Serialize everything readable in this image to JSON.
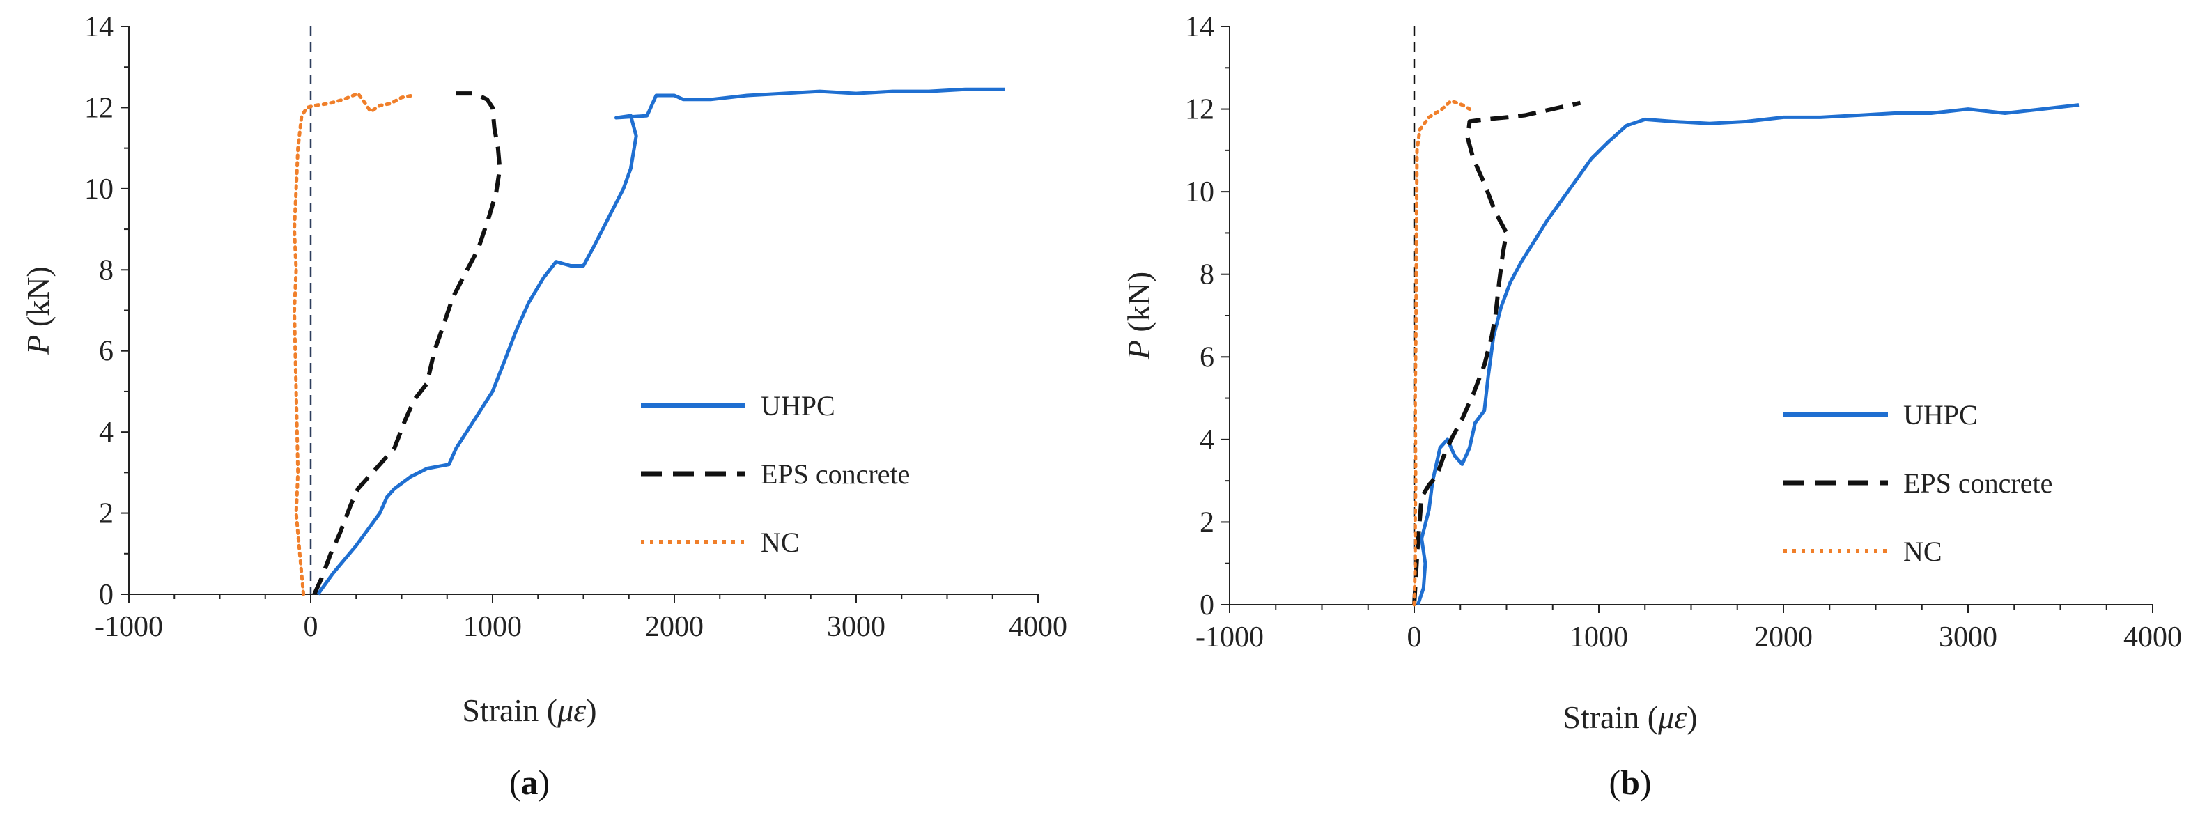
{
  "chart_data": [
    {
      "type": "line",
      "panel_label": "(a)",
      "xlabel": "Strain (με)",
      "ylabel": "P (kN)",
      "xlim": [
        -1000,
        4000
      ],
      "ylim": [
        0,
        14
      ],
      "x_ticks": [
        -1000,
        0,
        1000,
        2000,
        3000,
        4000
      ],
      "y_ticks": [
        0,
        2,
        4,
        6,
        8,
        10,
        12,
        14
      ],
      "reference_line_x": 0,
      "legend_position": "right",
      "series": [
        {
          "name": "UHPC",
          "color": "#1f6fd1",
          "dash": "solid",
          "points": [
            [
              40,
              0
            ],
            [
              120,
              0.5
            ],
            [
              250,
              1.2
            ],
            [
              380,
              2.0
            ],
            [
              420,
              2.4
            ],
            [
              460,
              2.6
            ],
            [
              550,
              2.9
            ],
            [
              640,
              3.1
            ],
            [
              760,
              3.2
            ],
            [
              800,
              3.6
            ],
            [
              900,
              4.3
            ],
            [
              1000,
              5.0
            ],
            [
              1070,
              5.8
            ],
            [
              1130,
              6.5
            ],
            [
              1200,
              7.2
            ],
            [
              1280,
              7.8
            ],
            [
              1350,
              8.2
            ],
            [
              1430,
              8.1
            ],
            [
              1500,
              8.1
            ],
            [
              1560,
              8.6
            ],
            [
              1640,
              9.3
            ],
            [
              1720,
              10.0
            ],
            [
              1760,
              10.5
            ],
            [
              1790,
              11.3
            ],
            [
              1760,
              11.8
            ],
            [
              1680,
              11.75
            ],
            [
              1850,
              11.8
            ],
            [
              1900,
              12.3
            ],
            [
              2000,
              12.3
            ],
            [
              2050,
              12.2
            ],
            [
              2200,
              12.2
            ],
            [
              2400,
              12.3
            ],
            [
              2600,
              12.35
            ],
            [
              2800,
              12.4
            ],
            [
              3000,
              12.35
            ],
            [
              3200,
              12.4
            ],
            [
              3400,
              12.4
            ],
            [
              3600,
              12.45
            ],
            [
              3820,
              12.45
            ]
          ]
        },
        {
          "name": "EPS concrete",
          "color": "#111111",
          "dash": "dashed",
          "points": [
            [
              20,
              0
            ],
            [
              60,
              0.4
            ],
            [
              110,
              1.0
            ],
            [
              160,
              1.5
            ],
            [
              220,
              2.2
            ],
            [
              260,
              2.6
            ],
            [
              320,
              2.9
            ],
            [
              400,
              3.3
            ],
            [
              460,
              3.6
            ],
            [
              520,
              4.3
            ],
            [
              570,
              4.8
            ],
            [
              640,
              5.2
            ],
            [
              680,
              6.0
            ],
            [
              720,
              6.5
            ],
            [
              780,
              7.3
            ],
            [
              860,
              8.0
            ],
            [
              920,
              8.5
            ],
            [
              980,
              9.3
            ],
            [
              1020,
              9.9
            ],
            [
              1040,
              10.5
            ],
            [
              1030,
              11.0
            ],
            [
              1010,
              11.5
            ],
            [
              1000,
              12.0
            ],
            [
              970,
              12.2
            ],
            [
              900,
              12.35
            ],
            [
              800,
              12.35
            ]
          ]
        },
        {
          "name": "NC",
          "color": "#f07f2a",
          "dash": "dotted",
          "points": [
            [
              -40,
              0
            ],
            [
              -60,
              1
            ],
            [
              -80,
              2
            ],
            [
              -70,
              3
            ],
            [
              -80,
              5
            ],
            [
              -90,
              7
            ],
            [
              -80,
              8
            ],
            [
              -90,
              9
            ],
            [
              -80,
              10
            ],
            [
              -70,
              11
            ],
            [
              -50,
              11.8
            ],
            [
              -20,
              12.0
            ],
            [
              20,
              12.05
            ],
            [
              100,
              12.1
            ],
            [
              180,
              12.2
            ],
            [
              260,
              12.35
            ],
            [
              300,
              12.1
            ],
            [
              330,
              11.9
            ],
            [
              380,
              12.05
            ],
            [
              440,
              12.1
            ],
            [
              500,
              12.25
            ],
            [
              560,
              12.3
            ]
          ]
        }
      ]
    },
    {
      "type": "line",
      "panel_label": "(b)",
      "xlabel": "Strain (με)",
      "ylabel": "P (kN)",
      "xlim": [
        -1000,
        4000
      ],
      "ylim": [
        0,
        14
      ],
      "x_ticks": [
        -1000,
        0,
        1000,
        2000,
        3000,
        4000
      ],
      "y_ticks": [
        0,
        2,
        4,
        6,
        8,
        10,
        12,
        14
      ],
      "reference_line_x": 0,
      "legend_position": "right",
      "series": [
        {
          "name": "UHPC",
          "color": "#1f6fd1",
          "dash": "solid",
          "points": [
            [
              20,
              0
            ],
            [
              50,
              0.4
            ],
            [
              60,
              1.0
            ],
            [
              40,
              1.6
            ],
            [
              80,
              2.3
            ],
            [
              100,
              3.0
            ],
            [
              140,
              3.8
            ],
            [
              180,
              4.0
            ],
            [
              220,
              3.6
            ],
            [
              260,
              3.4
            ],
            [
              300,
              3.8
            ],
            [
              330,
              4.4
            ],
            [
              380,
              4.7
            ],
            [
              400,
              5.5
            ],
            [
              430,
              6.5
            ],
            [
              470,
              7.2
            ],
            [
              520,
              7.8
            ],
            [
              580,
              8.3
            ],
            [
              650,
              8.8
            ],
            [
              720,
              9.3
            ],
            [
              800,
              9.8
            ],
            [
              880,
              10.3
            ],
            [
              960,
              10.8
            ],
            [
              1050,
              11.2
            ],
            [
              1150,
              11.6
            ],
            [
              1250,
              11.75
            ],
            [
              1400,
              11.7
            ],
            [
              1600,
              11.65
            ],
            [
              1800,
              11.7
            ],
            [
              2000,
              11.8
            ],
            [
              2200,
              11.8
            ],
            [
              2400,
              11.85
            ],
            [
              2600,
              11.9
            ],
            [
              2800,
              11.9
            ],
            [
              3000,
              12.0
            ],
            [
              3200,
              11.9
            ],
            [
              3400,
              12.0
            ],
            [
              3600,
              12.1
            ]
          ]
        },
        {
          "name": "EPS concrete",
          "color": "#111111",
          "dash": "dashed",
          "points": [
            [
              0,
              0
            ],
            [
              20,
              1.5
            ],
            [
              40,
              2.6
            ],
            [
              80,
              2.9
            ],
            [
              120,
              3.1
            ],
            [
              160,
              3.6
            ],
            [
              200,
              4.0
            ],
            [
              260,
              4.5
            ],
            [
              320,
              5.1
            ],
            [
              380,
              5.8
            ],
            [
              420,
              6.5
            ],
            [
              440,
              7.0
            ],
            [
              460,
              7.8
            ],
            [
              480,
              8.5
            ],
            [
              500,
              9.0
            ],
            [
              440,
              9.5
            ],
            [
              380,
              10.2
            ],
            [
              320,
              10.8
            ],
            [
              290,
              11.3
            ],
            [
              300,
              11.7
            ],
            [
              380,
              11.75
            ],
            [
              500,
              11.8
            ],
            [
              600,
              11.85
            ],
            [
              700,
              11.95
            ],
            [
              800,
              12.05
            ],
            [
              900,
              12.15
            ]
          ]
        },
        {
          "name": "NC",
          "color": "#f07f2a",
          "dash": "dotted",
          "points": [
            [
              0,
              0
            ],
            [
              5,
              1
            ],
            [
              5,
              2
            ],
            [
              8,
              3
            ],
            [
              5,
              5
            ],
            [
              10,
              7
            ],
            [
              12,
              9
            ],
            [
              15,
              11
            ],
            [
              30,
              11.5
            ],
            [
              80,
              11.8
            ],
            [
              150,
              12.0
            ],
            [
              200,
              12.2
            ],
            [
              260,
              12.1
            ],
            [
              300,
              12.0
            ]
          ]
        }
      ]
    }
  ]
}
